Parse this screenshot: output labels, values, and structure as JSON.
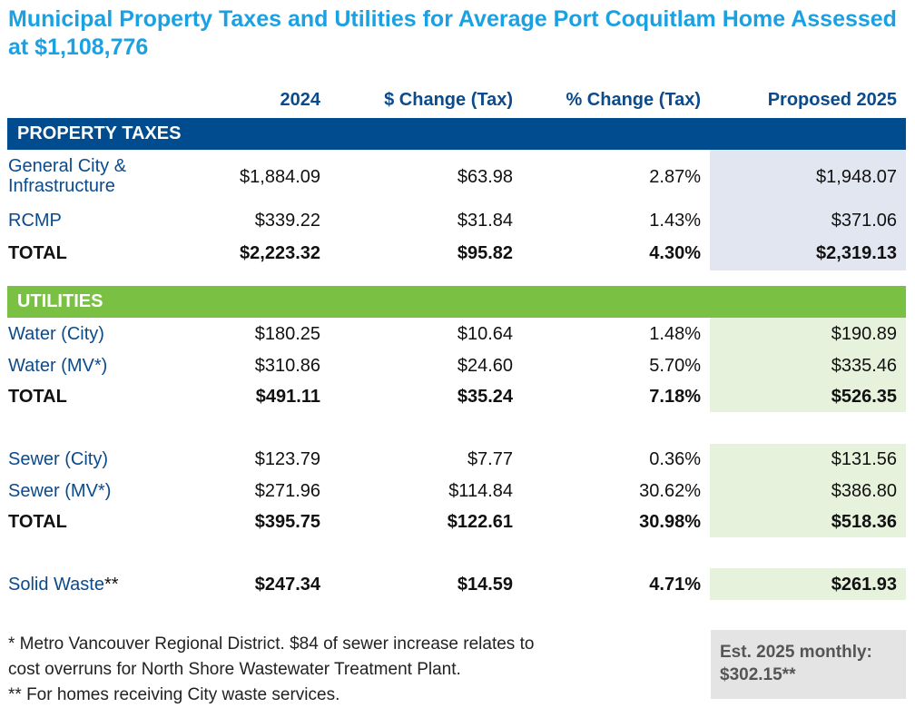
{
  "title": "Municipal Property Taxes and Utilities for Average Port Coquitlam Home Assessed at $1,108,776",
  "headers": {
    "y2024": "2024",
    "change_tax": "$ Change (Tax)",
    "pct_change_tax": "% Change (Tax)",
    "proposed": "Proposed 2025"
  },
  "property_taxes": {
    "heading": "PROPERTY TAXES",
    "rows": [
      {
        "label_line1": "General City &",
        "label_line2": "Infrastructure",
        "v2024": "$1,884.09",
        "change": "$63.98",
        "pct": "2.87%",
        "proposed": "$1,948.07"
      },
      {
        "label": "RCMP",
        "v2024": "$339.22",
        "change": "$31.84",
        "pct": "1.43%",
        "proposed": "$371.06"
      }
    ],
    "total": {
      "label": "TOTAL",
      "v2024": "$2,223.32",
      "change": "$95.82",
      "pct": "4.30%",
      "proposed": "$2,319.13"
    }
  },
  "utilities": {
    "heading": "UTILITIES",
    "water": {
      "rows": [
        {
          "label": "Water (City)",
          "v2024": "$180.25",
          "change": "$10.64",
          "pct": "1.48%",
          "proposed": "$190.89"
        },
        {
          "label": "Water (MV*)",
          "v2024": "$310.86",
          "change": "$24.60",
          "pct": "5.70%",
          "proposed": "$335.46"
        }
      ],
      "total": {
        "label": "TOTAL",
        "v2024": "$491.11",
        "change": "$35.24",
        "pct": "7.18%",
        "proposed": "$526.35"
      }
    },
    "sewer": {
      "rows": [
        {
          "label": "Sewer (City)",
          "v2024": "$123.79",
          "change": "$7.77",
          "pct": "0.36%",
          "proposed": "$131.56"
        },
        {
          "label": "Sewer (MV*)",
          "v2024": "$271.96",
          "change": "$114.84",
          "pct": "30.62%",
          "proposed": "$386.80"
        }
      ],
      "total": {
        "label": "TOTAL",
        "v2024": "$395.75",
        "change": "$122.61",
        "pct": "30.98%",
        "proposed": "$518.36"
      }
    },
    "solid_waste": {
      "label": "Solid Waste",
      "label_suffix": "**",
      "v2024": "$247.34",
      "change": "$14.59",
      "pct": "4.71%",
      "proposed": "$261.93"
    }
  },
  "footnotes": {
    "line1": "* Metro Vancouver Regional District. $84 of sewer increase relates to",
    "line2": "cost overruns for North Shore Wastewater Treatment Plant.",
    "line3": "** For homes receiving City waste services."
  },
  "monthly": {
    "line1": "Est. 2025 monthly:",
    "line2": "$302.15**"
  },
  "colors": {
    "title": "#1ba1e2",
    "navy": "#0b4a8b",
    "band_blue": "#004c8f",
    "band_green": "#7ac143",
    "shade_blue": "#e2e6f1",
    "shade_green": "#e6f2dc"
  }
}
